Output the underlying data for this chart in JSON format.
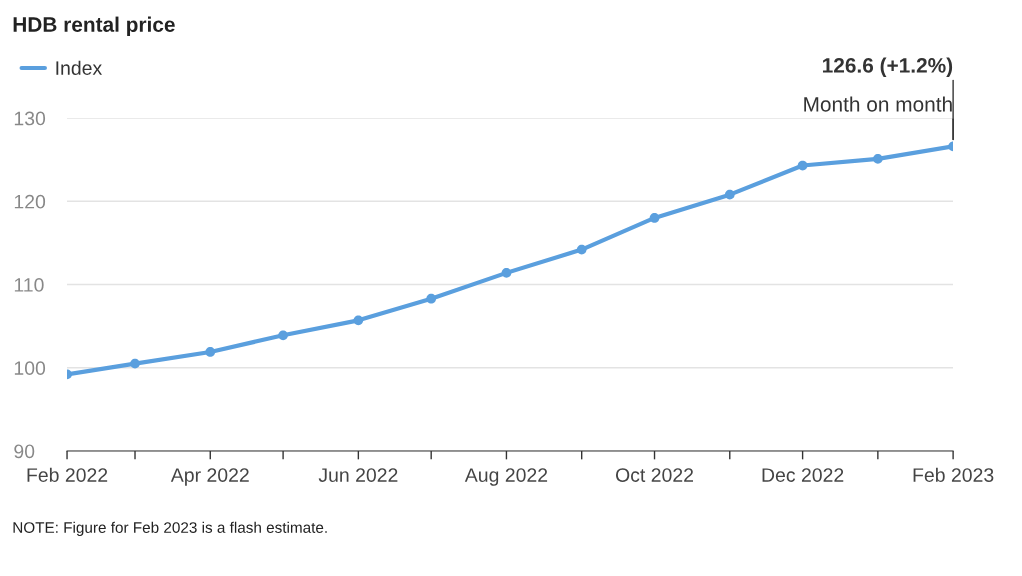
{
  "chart_data": {
    "type": "line",
    "title": "HDB rental price",
    "x": [
      "2022-02",
      "2022-03",
      "2022-04",
      "2022-05",
      "2022-06",
      "2022-07",
      "2022-08",
      "2022-09",
      "2022-10",
      "2022-11",
      "2022-12",
      "2023-01",
      "2023-02"
    ],
    "series": [
      {
        "name": "Index",
        "color": "#5a9fde",
        "values": [
          99.2,
          100.5,
          101.9,
          103.9,
          105.7,
          108.3,
          111.4,
          114.2,
          118.0,
          120.8,
          124.3,
          125.1,
          126.6
        ]
      }
    ],
    "xlim": [
      "2022-02",
      "2023-02"
    ],
    "xticks": [
      {
        "value": "2022-02",
        "label": "Feb 2022"
      },
      {
        "value": "2022-03",
        "label": null
      },
      {
        "value": "2022-04",
        "label": "Apr 2022"
      },
      {
        "value": "2022-05",
        "label": null
      },
      {
        "value": "2022-06",
        "label": "Jun 2022"
      },
      {
        "value": "2022-07",
        "label": null
      },
      {
        "value": "2022-08",
        "label": "Aug 2022"
      },
      {
        "value": "2022-09",
        "label": null
      },
      {
        "value": "2022-10",
        "label": "Oct 2022"
      },
      {
        "value": "2022-11",
        "label": null
      },
      {
        "value": "2022-12",
        "label": "Dec 2022"
      },
      {
        "value": "2023-01",
        "label": null
      },
      {
        "value": "2023-02",
        "label": "Feb 2023"
      }
    ],
    "ylim": [
      90,
      130
    ],
    "yticks": [
      90,
      100,
      110,
      120,
      130
    ],
    "grid": "y",
    "legend": "top left",
    "marker": "circle",
    "line_style": "solid",
    "annotations": [
      {
        "text": "126.6 (+1.2%)",
        "x": "2023-02",
        "y": 126.6
      },
      {
        "text": "Month on month",
        "x": "2023-02",
        "y": 126.6
      },
      "NOTE: Figure for Feb 2023 is a flash estimate."
    ]
  }
}
